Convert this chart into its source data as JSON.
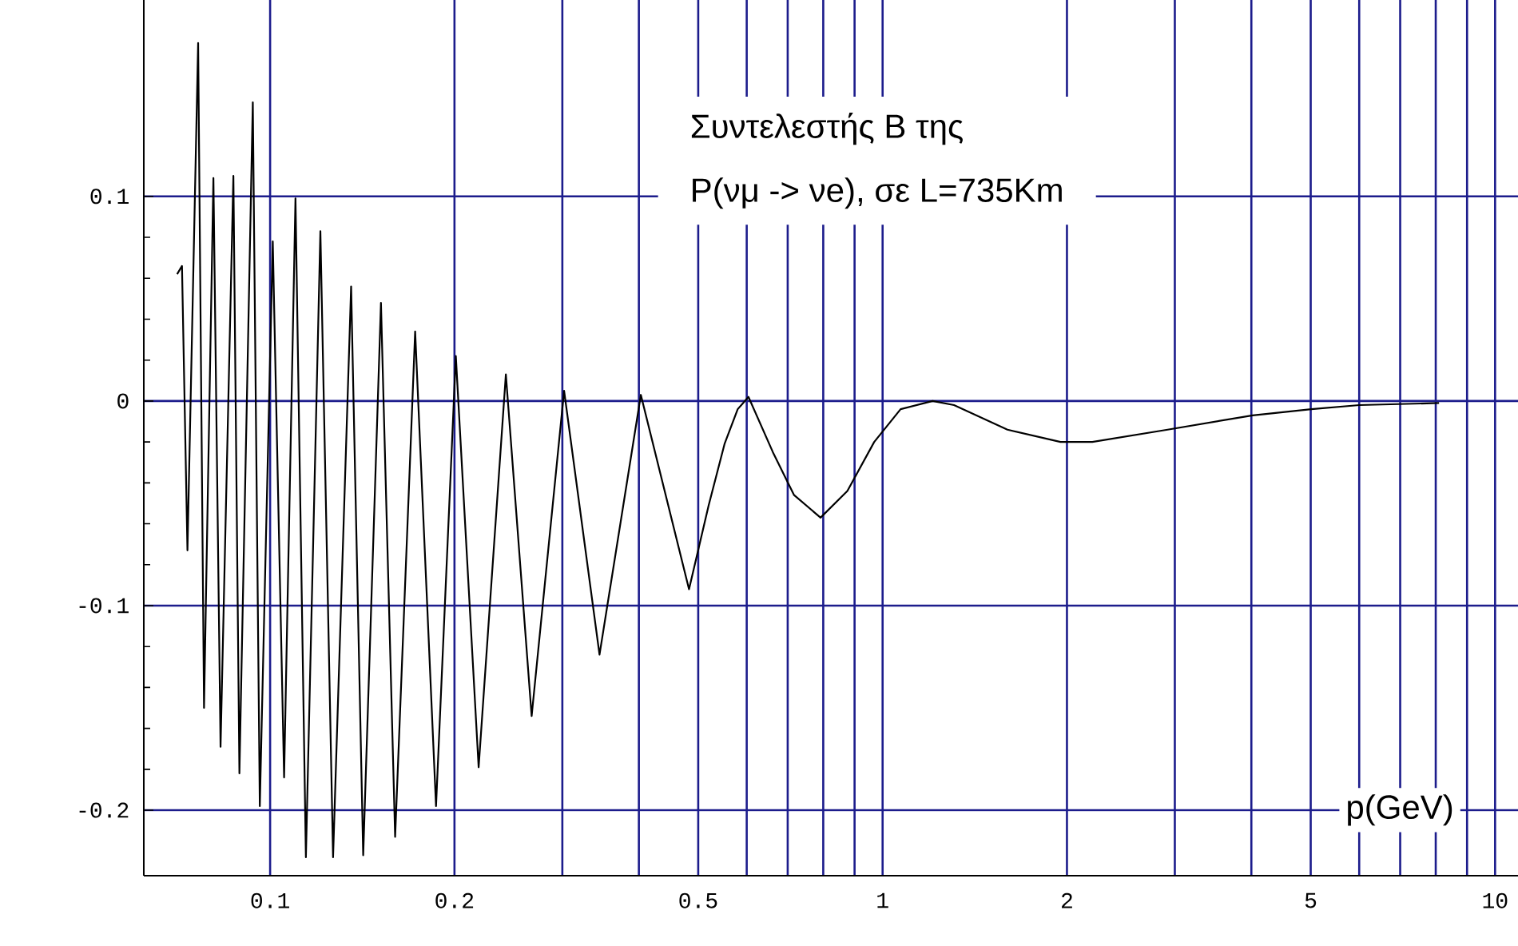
{
  "chart_data": {
    "type": "line",
    "title": "Συντελεστής B της",
    "subtitle": "P(νμ -> νe), σε L=735Km",
    "xlabel": "p(GeV)",
    "log": "x",
    "grid": true,
    "color": "#000000",
    "x": [
      0.0705,
      0.0718,
      0.0733,
      0.0763,
      0.078,
      0.0808,
      0.083,
      0.0871,
      0.0891,
      0.0937,
      0.0962,
      0.101,
      0.1054,
      0.11,
      0.1144,
      0.1208,
      0.1267,
      0.1356,
      0.1419,
      0.1517,
      0.16,
      0.1725,
      0.1866,
      0.201,
      0.219,
      0.2426,
      0.2673,
      0.302,
      0.345,
      0.403,
      0.483,
      0.52,
      0.552,
      0.58,
      0.604,
      0.662,
      0.717,
      0.792,
      0.876,
      0.969,
      1.07,
      1.207,
      1.308,
      1.599,
      1.952,
      2.2,
      2.92,
      4.02,
      5.01,
      6.0,
      8.1
    ],
    "values": [
      0.062,
      0.066,
      -0.073,
      0.175,
      -0.15,
      0.109,
      -0.169,
      0.11,
      -0.182,
      0.146,
      -0.198,
      0.078,
      -0.184,
      0.099,
      -0.223,
      0.083,
      -0.223,
      0.056,
      -0.222,
      0.048,
      -0.213,
      0.034,
      -0.198,
      0.022,
      -0.179,
      0.013,
      -0.154,
      0.005,
      -0.124,
      0.003,
      -0.092,
      -0.051,
      -0.021,
      -0.004,
      0.002,
      -0.025,
      -0.046,
      -0.057,
      -0.044,
      -0.02,
      -0.004,
      0.0,
      -0.002,
      -0.014,
      -0.02,
      -0.02,
      -0.014,
      -0.007,
      -0.004,
      -0.002,
      -0.001
    ],
    "xlim": [
      0.0622,
      10.9
    ],
    "ylim": [
      -0.232,
      0.196
    ],
    "xticks": [
      0.1,
      0.2,
      {
        "value": 0.3,
        "label": null
      },
      {
        "value": 0.4,
        "label": null
      },
      0.5,
      {
        "value": 0.6,
        "label": null
      },
      {
        "value": 0.7,
        "label": null
      },
      {
        "value": 0.8,
        "label": null
      },
      {
        "value": 0.9,
        "label": null
      },
      1,
      2,
      {
        "value": 3,
        "label": null
      },
      {
        "value": 4,
        "label": null
      },
      5,
      {
        "value": 6,
        "label": null
      },
      {
        "value": 7,
        "label": null
      },
      {
        "value": 8,
        "label": null
      },
      {
        "value": 9,
        "label": null
      },
      10
    ],
    "yticks": [
      -0.2,
      -0.1,
      0,
      0.1
    ]
  }
}
